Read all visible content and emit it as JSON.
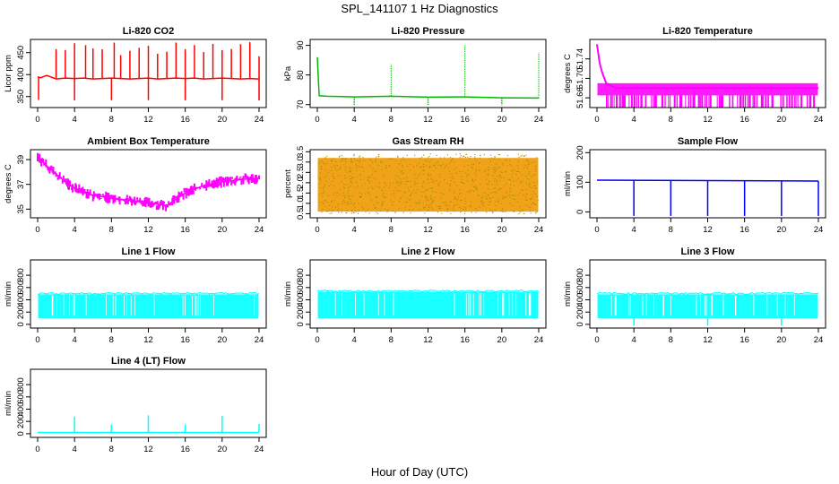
{
  "figure": {
    "title": "SPL_141107  1 Hz Diagnostics",
    "xlabel": "Hour of Day (UTC)"
  },
  "chart_data": [
    {
      "type": "line",
      "title": "Li-820 CO2",
      "ylabel": "Licor ppm",
      "color": "#ff0000",
      "xlim": [
        0,
        24
      ],
      "ylim": [
        325,
        480
      ],
      "xticks": [
        0,
        4,
        8,
        12,
        16,
        20,
        24
      ],
      "yticks": [
        350,
        400,
        450
      ],
      "x": [
        0,
        0.3,
        1,
        2,
        3,
        4,
        5,
        6,
        7,
        8,
        9,
        10,
        11,
        12,
        13,
        14,
        15,
        16,
        17,
        18,
        19,
        20,
        21,
        22,
        23,
        24
      ],
      "values": [
        395,
        393,
        398,
        390,
        392,
        391,
        392,
        390,
        391,
        392,
        391,
        390,
        391,
        392,
        390,
        391,
        392,
        391,
        392,
        390,
        391,
        392,
        391,
        390,
        391,
        390
      ],
      "spikes_up": [
        2,
        3,
        4,
        5.2,
        6,
        7,
        8.3,
        9,
        10,
        11,
        12,
        13,
        14,
        15,
        16,
        17,
        18,
        19,
        20,
        21,
        22,
        23,
        24
      ],
      "spikes_down": [
        0.1,
        4,
        8,
        12,
        16,
        20,
        24
      ]
    },
    {
      "type": "line",
      "title": "Li-820 Pressure",
      "ylabel": "kPa",
      "color": "#00bb00",
      "xlim": [
        0,
        24
      ],
      "ylim": [
        69,
        92
      ],
      "xticks": [
        0,
        4,
        8,
        12,
        16,
        20,
        24
      ],
      "yticks": [
        70,
        80,
        90
      ],
      "x": [
        0,
        0.2,
        1,
        4,
        8,
        12,
        16,
        20,
        24
      ],
      "values": [
        86,
        73,
        72.8,
        72.6,
        72.8,
        72.5,
        72.6,
        72.3,
        72.2
      ],
      "spikes_up": [
        8,
        16,
        24
      ],
      "spikes_down": [
        4,
        12,
        20
      ]
    },
    {
      "type": "line",
      "title": "Li-820 Temperature",
      "ylabel": "degrees C",
      "color": "#ff00ff",
      "xlim": [
        0,
        24
      ],
      "ylim": [
        51.64,
        51.78
      ],
      "xticks": [
        0,
        4,
        8,
        12,
        16,
        20,
        24
      ],
      "yticks": [
        51.66,
        51.7,
        51.74
      ],
      "x": [
        0,
        0.3,
        0.6,
        1,
        2,
        4,
        8,
        12,
        16,
        20,
        24
      ],
      "values": [
        51.77,
        51.73,
        51.71,
        51.69,
        51.68,
        51.68,
        51.68,
        51.68,
        51.68,
        51.68,
        51.68
      ],
      "band": [
        51.665,
        51.69
      ]
    },
    {
      "type": "line",
      "title": "Ambient Box Temperature",
      "ylabel": "degrees C",
      "color": "#ff00ff",
      "xlim": [
        0,
        24
      ],
      "ylim": [
        34.3,
        39.8
      ],
      "xticks": [
        0,
        4,
        8,
        12,
        16,
        20,
        24
      ],
      "yticks": [
        35,
        37,
        39
      ],
      "x": [
        0,
        1,
        2,
        3,
        4,
        6,
        8,
        10,
        12,
        14,
        16,
        18,
        20,
        22,
        24
      ],
      "values": [
        39.2,
        38.5,
        37.8,
        37.2,
        36.7,
        36.1,
        35.9,
        35.7,
        35.5,
        35.3,
        36.3,
        36.9,
        37.2,
        37.4,
        37.5
      ],
      "spread": 0.6
    },
    {
      "type": "line",
      "title": "Gas Stream RH",
      "ylabel": "percent",
      "color": "#ee9900",
      "xlim": [
        0,
        24
      ],
      "ylim": [
        0.3,
        3.6
      ],
      "xticks": [
        0,
        4,
        8,
        12,
        16,
        20,
        24
      ],
      "yticks": [
        0.5,
        1.0,
        1.5,
        2.0,
        2.5,
        3.0,
        3.5
      ],
      "x": [
        0,
        24
      ],
      "values": [
        2.0,
        2.0
      ],
      "band": [
        0.6,
        3.2
      ]
    },
    {
      "type": "line",
      "title": "Sample Flow",
      "ylabel": "ml/min",
      "color": "#0000ff",
      "xlim": [
        0,
        24
      ],
      "ylim": [
        -20,
        210
      ],
      "xticks": [
        0,
        4,
        8,
        12,
        16,
        20,
        24
      ],
      "yticks": [
        0,
        100,
        200
      ],
      "x": [
        0,
        24
      ],
      "values": [
        107,
        104
      ],
      "spikes_down": [
        4,
        8,
        12,
        16,
        20,
        24
      ]
    },
    {
      "type": "line",
      "title": "Line 1 Flow",
      "ylabel": "ml/min",
      "color": "#00ffff",
      "xlim": [
        0,
        24
      ],
      "ylim": [
        -60,
        1050
      ],
      "xticks": [
        0,
        4,
        8,
        12,
        16,
        20,
        24
      ],
      "yticks": [
        0,
        200,
        400,
        600,
        800
      ],
      "x": [
        0,
        24
      ],
      "values": [
        320,
        320
      ],
      "band": [
        100,
        490
      ]
    },
    {
      "type": "line",
      "title": "Line 2 Flow",
      "ylabel": "ml/min",
      "color": "#00ffff",
      "xlim": [
        0,
        24
      ],
      "ylim": [
        -60,
        1050
      ],
      "xticks": [
        0,
        4,
        8,
        12,
        16,
        20,
        24
      ],
      "yticks": [
        0,
        200,
        400,
        600,
        800
      ],
      "x": [
        0,
        24
      ],
      "values": [
        340,
        340
      ],
      "band": [
        100,
        530
      ]
    },
    {
      "type": "line",
      "title": "Line 3 Flow",
      "ylabel": "ml/min",
      "color": "#00ffff",
      "xlim": [
        0,
        24
      ],
      "ylim": [
        -60,
        1050
      ],
      "xticks": [
        0,
        4,
        8,
        12,
        16,
        20,
        24
      ],
      "yticks": [
        0,
        200,
        400,
        600,
        800
      ],
      "x": [
        0,
        24
      ],
      "values": [
        320,
        320
      ],
      "band": [
        100,
        490
      ],
      "spikes_down": [
        4,
        12,
        20
      ]
    },
    {
      "type": "line",
      "title": "Line 4 (LT) Flow",
      "ylabel": "ml/min",
      "color": "#00ffff",
      "xlim": [
        0,
        24
      ],
      "ylim": [
        -60,
        1050
      ],
      "xticks": [
        0,
        4,
        8,
        12,
        16,
        20,
        24
      ],
      "yticks": [
        0,
        200,
        400,
        600,
        800
      ],
      "x": [
        0,
        24
      ],
      "values": [
        20,
        20
      ],
      "spikes_up": [
        4,
        8,
        12,
        16,
        20,
        24
      ],
      "spike_heights": [
        280,
        150,
        300,
        150,
        290,
        160
      ]
    }
  ]
}
